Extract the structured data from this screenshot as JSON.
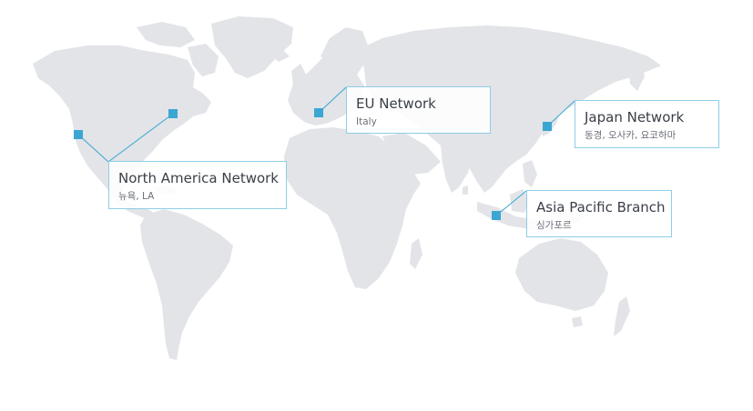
{
  "map": {
    "land_color": "#e2e4e8",
    "accent_color": "#3aa6d2",
    "callout_border_color": "#8fcde6"
  },
  "locations": [
    {
      "id": "north-america",
      "name": "North America Network",
      "sub": "뉴욕, LA"
    },
    {
      "id": "eu",
      "name": "EU Network",
      "sub": "Italy"
    },
    {
      "id": "japan",
      "name": "Japan Network",
      "sub": "동경, 오사카, 요코하마"
    },
    {
      "id": "asia-pacific",
      "name": "Asia Pacific Branch",
      "sub": "싱가포르"
    }
  ]
}
